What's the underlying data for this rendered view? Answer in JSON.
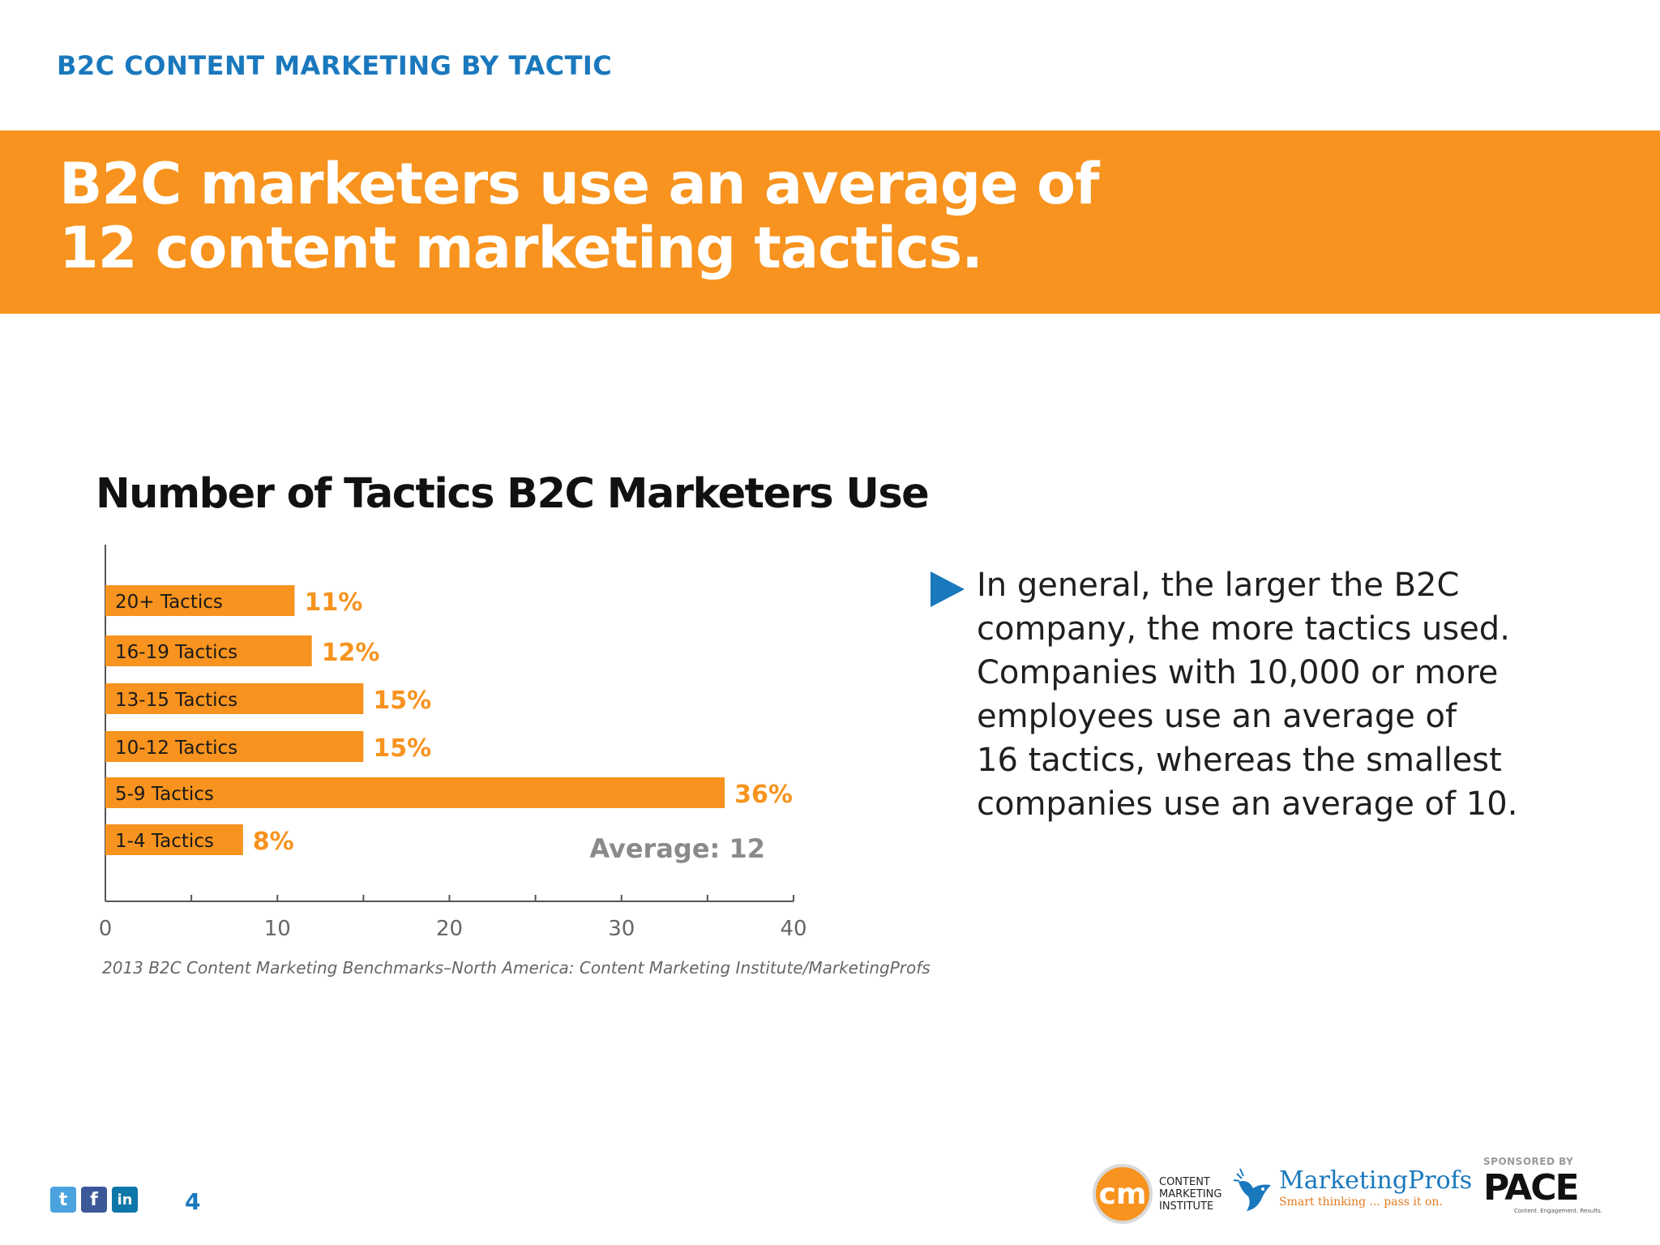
{
  "header": {
    "section_label": "B2C CONTENT MARKETING BY TACTIC",
    "headline_line1": "B2C marketers use an average of",
    "headline_line2": "12 content marketing tactics."
  },
  "chart_data": {
    "type": "bar",
    "orientation": "horizontal",
    "title": "Number of Tactics B2C Marketers Use",
    "categories": [
      "20+ Tactics",
      "16-19 Tactics",
      "13-15 Tactics",
      "10-12 Tactics",
      "5-9 Tactics",
      "1-4 Tactics"
    ],
    "values": [
      11,
      12,
      15,
      15,
      36,
      8
    ],
    "value_labels": [
      "11%",
      "12%",
      "15%",
      "15%",
      "36%",
      "8%"
    ],
    "xlim": [
      0,
      40
    ],
    "x_ticks": [
      0,
      10,
      20,
      30,
      40
    ],
    "x_tick_labels": [
      "0",
      "10",
      "20",
      "30",
      "40"
    ],
    "annotation": "Average: 12",
    "bar_color": "#f7931e",
    "label_color": "#f7931e",
    "grid": false
  },
  "source": "2013 B2C Content Marketing Benchmarks–North America: Content Marketing Institute/MarketingProfs",
  "insight": {
    "lines": [
      "In general, the larger the B2C",
      "company, the more tactics used.",
      "Companies with 10,000 or more",
      "employees use an average of",
      "16 tactics, whereas the smallest",
      "companies use an average of 10."
    ]
  },
  "footer": {
    "page_number": "4",
    "social": [
      {
        "icon": "twitter-icon",
        "glyph": "t",
        "color": "#4aa3df"
      },
      {
        "icon": "facebook-icon",
        "glyph": "f",
        "color": "#3b5998"
      },
      {
        "icon": "linkedin-icon",
        "glyph": "in",
        "color": "#0e76a8"
      }
    ],
    "cmi": {
      "mark": "cm",
      "line1": "CONTENT",
      "line2": "MARKETING",
      "line3": "INSTITUTE"
    },
    "marketingprofs": {
      "name": "MarketingProfs",
      "tagline": "Smart thinking ... pass it on."
    },
    "sponsor_label": "SPONSORED BY",
    "sponsor_name": "PACE",
    "sponsor_tagline": "Content. Engagement. Results."
  },
  "colors": {
    "accent_blue": "#1a78bd",
    "accent_orange": "#f7931e"
  }
}
